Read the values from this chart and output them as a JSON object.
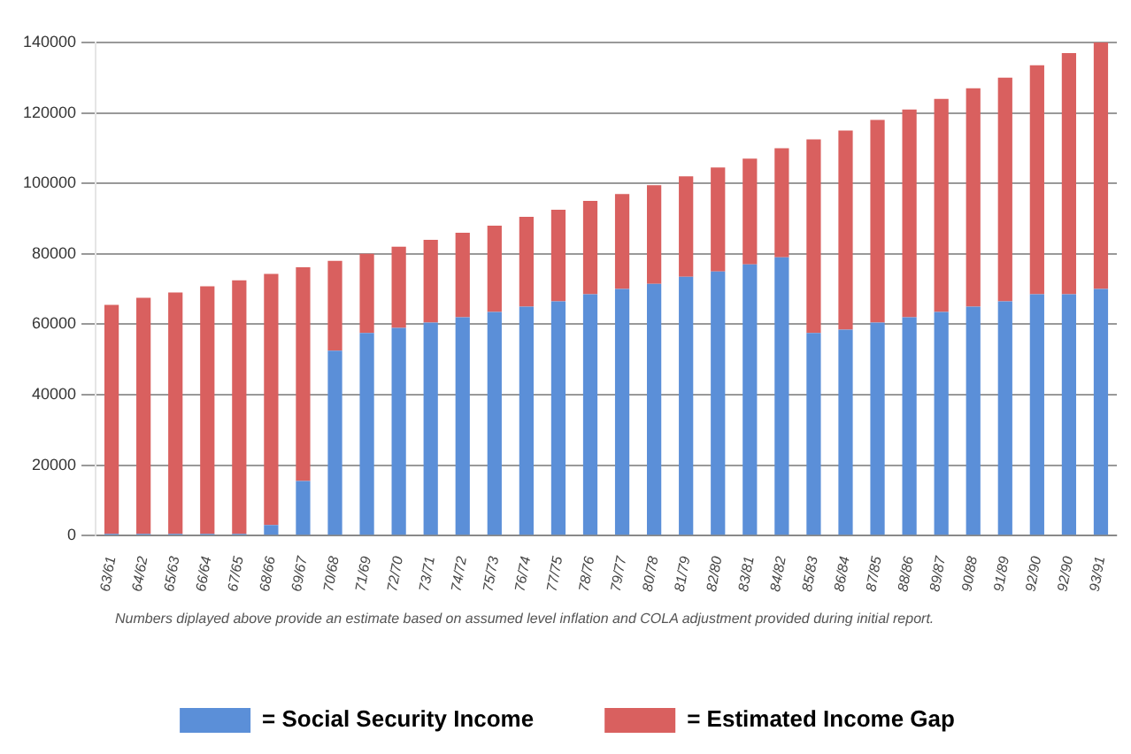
{
  "chart_data": {
    "type": "bar",
    "stacked": true,
    "grid": "y",
    "legend": "bottom",
    "categories": [
      "63/61",
      "64/62",
      "65/63",
      "66/64",
      "67/65",
      "68/66",
      "69/67",
      "70/68",
      "71/69",
      "72/70",
      "73/71",
      "74/72",
      "75/73",
      "76/74",
      "77/75",
      "78/76",
      "79/77",
      "80/78",
      "81/79",
      "82/80",
      "83/81",
      "84/82",
      "85/83",
      "86/84",
      "87/85",
      "88/86",
      "89/87",
      "90/88",
      "91/89",
      "92/90",
      "92/90",
      "93/91"
    ],
    "series": [
      {
        "name": "= Social Security Income",
        "color": "#5b8fd8",
        "values": [
          500,
          500,
          500,
          500,
          500,
          3000,
          15500,
          52500,
          57500,
          59000,
          60500,
          62000,
          63500,
          65000,
          66500,
          68500,
          70000,
          71500,
          73500,
          75000,
          77000,
          79000,
          57500,
          58500,
          60500,
          62000,
          63500,
          65000,
          66500,
          68500,
          68500,
          70000
        ]
      },
      {
        "name": "= Estimated Income Gap",
        "color": "#d9605f",
        "values": [
          65000,
          67000,
          68500,
          70300,
          72000,
          71300,
          60700,
          25500,
          22500,
          23000,
          23500,
          24000,
          24500,
          25500,
          26000,
          26500,
          27000,
          28000,
          28500,
          29500,
          30000,
          31000,
          55000,
          56500,
          57500,
          59000,
          60500,
          62000,
          63500,
          65000,
          68500,
          70000
        ]
      }
    ],
    "ylim": [
      0,
      140000
    ],
    "yticks": [
      0,
      20000,
      40000,
      60000,
      80000,
      100000,
      120000,
      140000
    ],
    "annotations": [
      "Numbers diplayed above provide an estimate based on assumed level inflation and COLA adjustment provided during initial report."
    ]
  }
}
